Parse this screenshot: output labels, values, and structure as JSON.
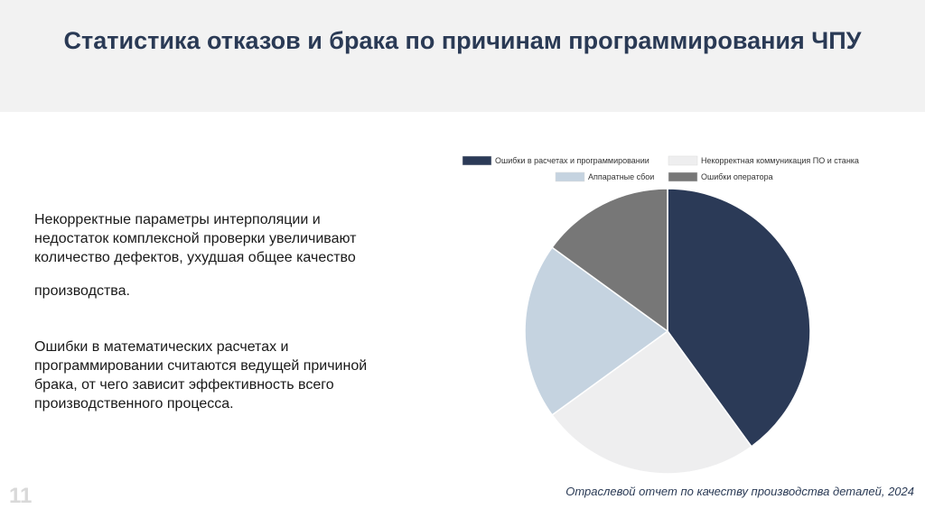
{
  "title": "Статистика отказов и брака по причинам программирования ЧПУ",
  "paragraphs": [
    "Некорректные параметры интерполяции и недостаток комплексной проверки увеличивают количество дефектов, ухудшая общее качество",
    "производства.",
    "Ошибки в математических расчетах и программировании считаются ведущей причиной брака, от чего зависит эффективность всего производственного процесса."
  ],
  "page_number": "11",
  "source": "Отраслевой отчет по качеству производства деталей, 2024",
  "chart_data": {
    "type": "pie",
    "legend_position": "top",
    "categories": [
      "Ошибки в расчетах и программировании",
      "Некорректная коммуникация ПО и станка",
      "Аппаратные сбои",
      "Ошибки оператора"
    ],
    "values": [
      40,
      25,
      20,
      15
    ],
    "colors": [
      "#2b3a57",
      "#eeeeef",
      "#c5d3e0",
      "#777777"
    ]
  }
}
